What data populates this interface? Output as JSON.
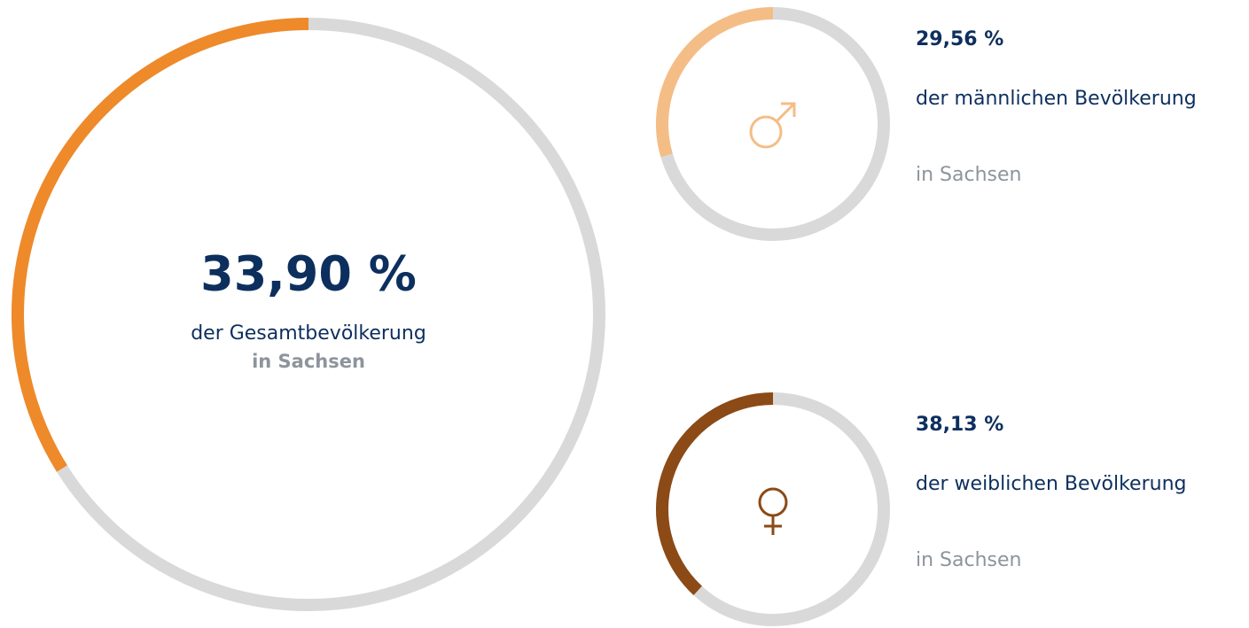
{
  "chart_data": [
    {
      "type": "gauge",
      "values": [
        33.9
      ],
      "value_labels": [
        "33,90 %"
      ],
      "label": "der Gesamtbevölkerung",
      "sublabel": "in Sachsen",
      "color": "#ee8a2a",
      "track_color": "#d9d9d9",
      "ylim": [
        0,
        100
      ]
    },
    {
      "type": "gauge",
      "values": [
        29.56
      ],
      "value_labels": [
        "29,56 %"
      ],
      "label": "der männlichen Bevölkerung",
      "sublabel": "in Sachsen",
      "color": "#f5bd86",
      "track_color": "#d9d9d9",
      "ylim": [
        0,
        100
      ]
    },
    {
      "type": "gauge",
      "values": [
        38.13
      ],
      "value_labels": [
        "38,13 %"
      ],
      "label": "der weiblichen Bevölkerung",
      "sublabel": "in Sachsen",
      "color": "#8b4a16",
      "track_color": "#d9d9d9",
      "ylim": [
        0,
        100
      ]
    }
  ]
}
